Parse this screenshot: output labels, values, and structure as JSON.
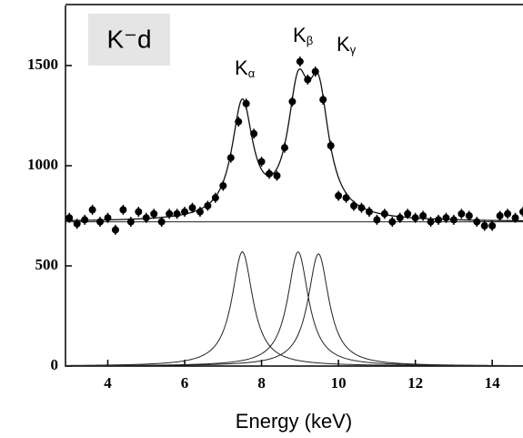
{
  "chart_data": {
    "type": "scatter",
    "title": "K⁻d",
    "xlabel": "Energy (keV)",
    "xlim": [
      2.9,
      14.8
    ],
    "ylim": [
      0,
      1800
    ],
    "xticks": [
      4,
      6,
      8,
      10,
      12,
      14
    ],
    "yticks": [
      0,
      500,
      1000,
      1500
    ],
    "color": "#000000",
    "x": [
      3.0,
      3.2,
      3.4,
      3.6,
      3.8,
      4.0,
      4.2,
      4.4,
      4.6,
      4.8,
      5.0,
      5.2,
      5.4,
      5.6,
      5.8,
      6.0,
      6.2,
      6.4,
      6.6,
      6.8,
      7.0,
      7.2,
      7.4,
      7.6,
      7.8,
      8.0,
      8.2,
      8.4,
      8.6,
      8.8,
      9.0,
      9.2,
      9.4,
      9.6,
      9.8,
      10.0,
      10.2,
      10.4,
      10.6,
      10.8,
      11.0,
      11.2,
      11.4,
      11.6,
      11.8,
      12.0,
      12.2,
      12.4,
      12.6,
      12.8,
      13.0,
      13.2,
      13.4,
      13.6,
      13.8,
      14.0,
      14.2,
      14.4,
      14.6,
      14.8
    ],
    "values": [
      740,
      710,
      730,
      780,
      720,
      740,
      680,
      780,
      720,
      770,
      740,
      760,
      720,
      760,
      760,
      770,
      790,
      770,
      800,
      840,
      900,
      1040,
      1220,
      1310,
      1160,
      1020,
      960,
      950,
      1090,
      1320,
      1520,
      1430,
      1470,
      1330,
      1100,
      850,
      840,
      800,
      790,
      770,
      730,
      760,
      720,
      740,
      760,
      740,
      750,
      720,
      730,
      740,
      730,
      760,
      750,
      720,
      700,
      700,
      750,
      760,
      740,
      770
    ],
    "error": 25,
    "baseline": 720,
    "components": [
      {
        "label": "K",
        "sub": "α",
        "center": 7.5,
        "height": 570,
        "hwhm": 0.33
      },
      {
        "label": "K",
        "sub": "β",
        "center": 8.95,
        "height": 570,
        "hwhm": 0.33
      },
      {
        "label": "K",
        "sub": "γ",
        "center": 9.48,
        "height": 560,
        "hwhm": 0.33
      }
    ]
  }
}
